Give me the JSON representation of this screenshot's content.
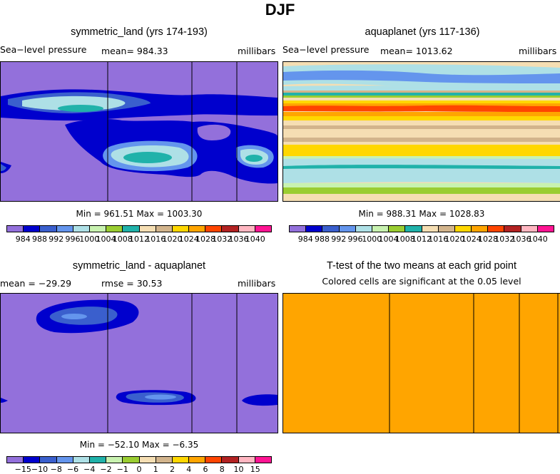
{
  "title": "DJF",
  "panels": [
    {
      "title": "symmetric_land (yrs 174-193)",
      "left_label": "Sea−level pressure",
      "center_label": "mean=  984.33",
      "right_label": "millibars",
      "stats": "Min = 961.51 Max = 1003.30"
    },
    {
      "title": "aquaplanet (yrs 117-136)",
      "left_label": "Sea−level pressure",
      "center_label": "mean=  1013.62",
      "right_label": "millibars",
      "stats": "Min = 988.31 Max = 1028.83"
    },
    {
      "title": "symmetric_land - aquaplanet",
      "left_label": "mean = −29.29",
      "center_label": "rmse =   30.53",
      "right_label": "millibars",
      "stats": "Min = −52.10 Max =   −6.35"
    },
    {
      "title": "T-test of the two means at each grid point",
      "subtitle": "Colored cells are significant at the 0.05 level"
    }
  ],
  "colorbars": {
    "abs_colors": [
      "#9370db",
      "#0000cd",
      "#3a5fcd",
      "#6495ed",
      "#aee0e6",
      "#c8f2b0",
      "#9acd32",
      "#20b2aa",
      "#f5deb3",
      "#d2b48c",
      "#ffd700",
      "#ffa500",
      "#ff4500",
      "#b22222",
      "#ffb6c1",
      "#ff1493"
    ],
    "abs_labels": [
      "984",
      "988",
      "992",
      "996",
      "1000",
      "1004",
      "1008",
      "1012",
      "1016",
      "1020",
      "1024",
      "1028",
      "1032",
      "1036",
      "1040"
    ],
    "diff_colors": [
      "#9370db",
      "#0000cd",
      "#3a5fcd",
      "#6495ed",
      "#aee0e6",
      "#20b2aa",
      "#c8f2b0",
      "#9acd32",
      "#f5deb3",
      "#d2b48c",
      "#ffd700",
      "#ffa500",
      "#ff4500",
      "#b22222",
      "#ffb6c1",
      "#ff1493"
    ],
    "diff_labels": [
      "−15",
      "−10",
      "−8",
      "−6",
      "−4",
      "−2",
      "−1",
      "0",
      "1",
      "2",
      "4",
      "6",
      "8",
      "10",
      "15"
    ]
  },
  "chart_data": [
    {
      "type": "heatmap",
      "title": "symmetric_land (yrs 174-193)",
      "variable": "Sea-level pressure",
      "units": "millibars",
      "mean": 984.33,
      "min": 961.51,
      "max": 1003.3,
      "contour_levels": [
        984,
        988,
        992,
        996,
        1000,
        1004,
        1008,
        1012,
        1016,
        1020,
        1024,
        1028,
        1032,
        1036,
        1040
      ],
      "land_lon_fractions": [
        0.385,
        0.69,
        0.85
      ]
    },
    {
      "type": "heatmap",
      "title": "aquaplanet (yrs 117-136)",
      "variable": "Sea-level pressure",
      "units": "millibars",
      "mean": 1013.62,
      "min": 988.31,
      "max": 1028.83,
      "contour_levels": [
        984,
        988,
        992,
        996,
        1000,
        1004,
        1008,
        1012,
        1016,
        1020,
        1024,
        1028,
        1032,
        1036,
        1040
      ]
    },
    {
      "type": "heatmap",
      "title": "symmetric_land - aquaplanet",
      "units": "millibars",
      "mean": -29.29,
      "rmse": 30.53,
      "min": -52.1,
      "max": -6.35,
      "contour_levels": [
        -15,
        -10,
        -8,
        -6,
        -4,
        -2,
        -1,
        0,
        1,
        2,
        4,
        6,
        8,
        10,
        15
      ],
      "land_lon_fractions": [
        0.385,
        0.69,
        0.85
      ]
    },
    {
      "type": "heatmap",
      "title": "T-test of the two means at each grid point",
      "note": "Colored cells are significant at the 0.05 level",
      "land_lon_fractions": [
        0.385,
        0.69,
        0.85
      ]
    }
  ]
}
